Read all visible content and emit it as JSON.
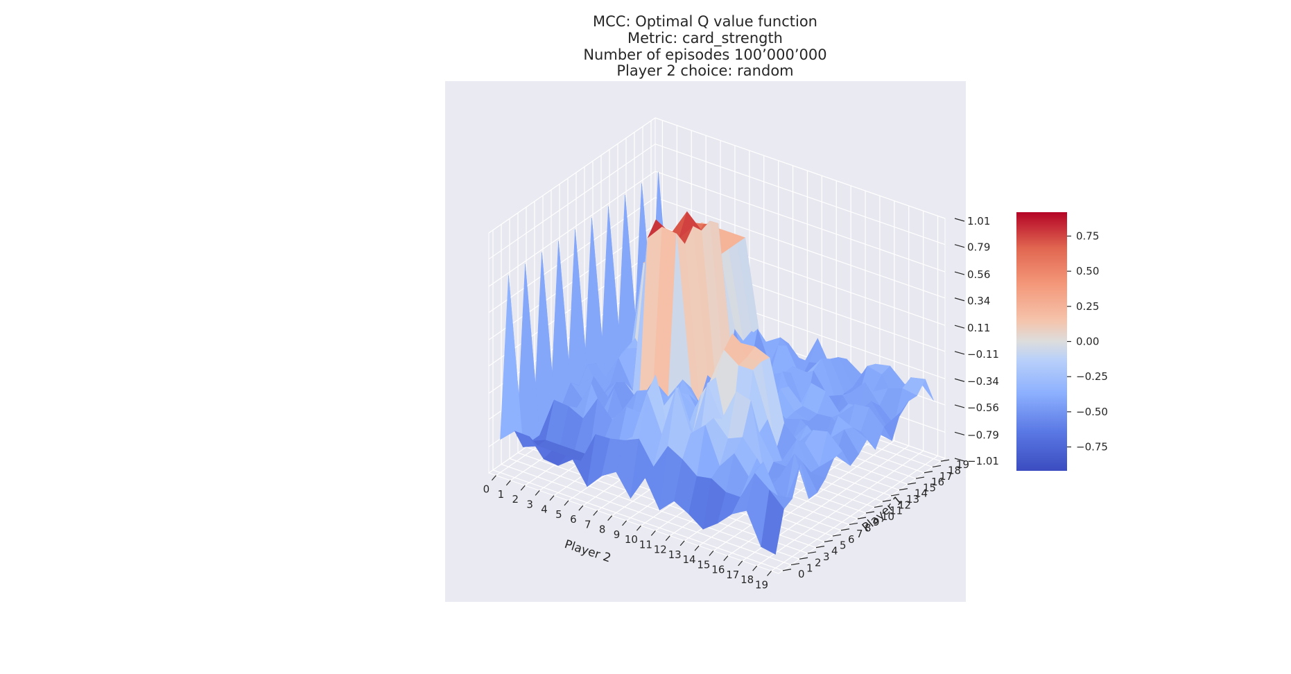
{
  "chart_data": {
    "type": "surface3d",
    "title_lines": [
      "MCC: Optimal Q value function",
      "Metric: card_strength",
      "Number of episodes 100’000’000",
      "Player 2 choice: random"
    ],
    "xlabel": "Player 2",
    "ylabel": "Player 1",
    "x_ticks": [
      "0",
      "1",
      "2",
      "3",
      "4",
      "5",
      "6",
      "7",
      "8",
      "9",
      "10",
      "11",
      "12",
      "13",
      "14",
      "15",
      "16",
      "17",
      "18",
      "19"
    ],
    "y_ticks": [
      "0",
      "1",
      "2",
      "3",
      "4",
      "5",
      "6",
      "7",
      "8",
      "9",
      "10",
      "11",
      "12",
      "13",
      "14",
      "15",
      "16",
      "17",
      "18",
      "19"
    ],
    "z_ticks": [
      "-1.01",
      "-0.79",
      "-0.56",
      "-0.34",
      "-0.11",
      "0.11",
      "0.34",
      "0.56",
      "0.79",
      "1.01"
    ],
    "zlim": [
      -1.01,
      1.01
    ],
    "colormap": "coolwarm",
    "colorbar": {
      "range": [
        -0.92,
        0.92
      ],
      "ticks": [
        {
          "value": 0.75,
          "label": "0.75"
        },
        {
          "value": 0.5,
          "label": "0.50"
        },
        {
          "value": 0.25,
          "label": "0.25"
        },
        {
          "value": 0.0,
          "label": "0.00"
        },
        {
          "value": -0.25,
          "label": "−0.25"
        },
        {
          "value": -0.5,
          "label": "−0.50"
        },
        {
          "value": -0.75,
          "label": "−0.75"
        }
      ]
    },
    "colors": {
      "pane": "#eaeaf2",
      "grid": "#ffffff",
      "cold": "#3b4cc0",
      "neutral": "#dddddd",
      "warm": "#b40426"
    },
    "grid": true
  }
}
